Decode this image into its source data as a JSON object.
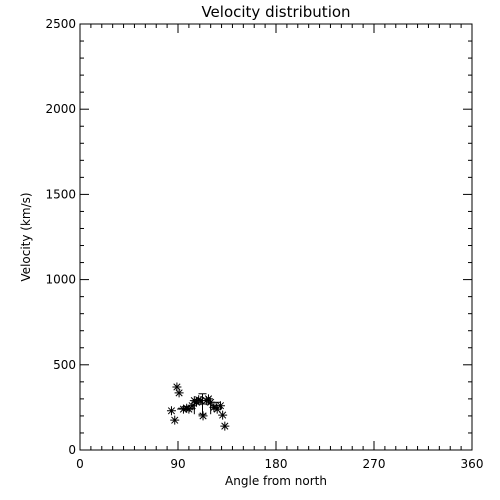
{
  "chart_data": {
    "type": "scatter",
    "title": "Velocity distribution",
    "xlabel": "Angle from north",
    "ylabel": "Velocity (km/s)",
    "xlim": [
      0,
      360
    ],
    "ylim": [
      0,
      2500
    ],
    "x_ticks": [
      "0",
      "90",
      "180",
      "270",
      "360"
    ],
    "y_ticks": [
      "0",
      "500",
      "1000",
      "1500",
      "2000",
      "2500"
    ],
    "grid": false,
    "points": [
      {
        "x": 84,
        "y": 230
      },
      {
        "x": 87,
        "y": 175
      },
      {
        "x": 89,
        "y": 370
      },
      {
        "x": 91,
        "y": 335
      },
      {
        "x": 95,
        "y": 240
      },
      {
        "x": 98,
        "y": 245
      },
      {
        "x": 100,
        "y": 240
      },
      {
        "x": 103,
        "y": 260
      },
      {
        "x": 105,
        "y": 290
      },
      {
        "x": 107,
        "y": 280
      },
      {
        "x": 109,
        "y": 295
      },
      {
        "x": 111,
        "y": 290
      },
      {
        "x": 113,
        "y": 200
      },
      {
        "x": 116,
        "y": 290
      },
      {
        "x": 118,
        "y": 300
      },
      {
        "x": 120,
        "y": 280
      },
      {
        "x": 123,
        "y": 250
      },
      {
        "x": 126,
        "y": 240
      },
      {
        "x": 129,
        "y": 260
      },
      {
        "x": 131,
        "y": 205
      },
      {
        "x": 133,
        "y": 140
      }
    ],
    "bins": [
      {
        "x0": 90,
        "x1": 105,
        "y": 245,
        "err": 10
      },
      {
        "x0": 105,
        "x1": 120,
        "y": 270,
        "err": 60
      },
      {
        "x0": 120,
        "x1": 130,
        "y": 260,
        "err": 20
      }
    ]
  }
}
